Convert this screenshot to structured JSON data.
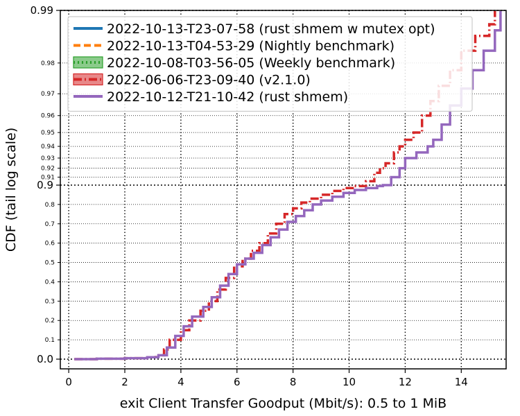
{
  "chart_data": {
    "type": "line",
    "xlabel": "exit Client Transfer Goodput (Mbit/s): 0.5 to 1 MiB",
    "ylabel": "CDF (tail log scale)",
    "xlim": [
      -0.3,
      15.6
    ],
    "xticks": [
      0,
      2,
      4,
      6,
      8,
      10,
      12,
      14
    ],
    "yscale": "tail log",
    "yticks_major": [
      0.0,
      0.9,
      0.99
    ],
    "yticks_minor": [
      0.1,
      0.2,
      0.3,
      0.4,
      0.5,
      0.6,
      0.7,
      0.8,
      0.91,
      0.92,
      0.93,
      0.94,
      0.95,
      0.96,
      0.97,
      0.98
    ],
    "ytick_labels": {
      "0.0": "0.0",
      "0.1": "0.1",
      "0.2": "0.2",
      "0.3": "0.3",
      "0.4": "0.4",
      "0.5": "0.5",
      "0.6": "0.6",
      "0.7": "0.7",
      "0.8": "0.8",
      "0.9": "0.9",
      "0.91": "0.91",
      "0.92": "0.92",
      "0.93": "0.93",
      "0.94": "0.94",
      "0.95": "0.95",
      "0.96": "0.96",
      "0.97": "0.97",
      "0.98": "0.98",
      "0.99": "0.99"
    },
    "grid": true,
    "legend_position": "top-left",
    "series": [
      {
        "name": "2022-10-13-T23-07-58 (rust shmem w mutex opt)",
        "color": "#1f77b4",
        "style": "solid",
        "x": [],
        "y": []
      },
      {
        "name": "2022-10-13-T04-53-29 (Nightly benchmark)",
        "color": "#ff7f0e",
        "style": "dashed",
        "x": [],
        "y": []
      },
      {
        "name": "2022-10-08-T03-56-05 (Weekly benchmark)",
        "color": "#2ca02c",
        "style": "dotted",
        "x": [],
        "y": []
      },
      {
        "name": "2022-06-06-T23-09-40 (v2.1.0)",
        "color": "#d62728",
        "style": "dashdot",
        "x": [
          0.2,
          1.0,
          2.0,
          2.8,
          3.1,
          3.4,
          3.6,
          4.0,
          4.3,
          4.7,
          5.0,
          5.3,
          5.6,
          5.9,
          6.2,
          6.5,
          6.8,
          7.1,
          7.4,
          7.7,
          8.0,
          8.3,
          8.6,
          9.0,
          9.4,
          9.8,
          10.2,
          10.6,
          10.9,
          11.1,
          11.3,
          11.6,
          11.8,
          12.0,
          12.3,
          12.6,
          12.9,
          13.2,
          13.6,
          14.0,
          14.5,
          15.0,
          15.2
        ],
        "y": [
          0.0,
          0.002,
          0.005,
          0.01,
          0.02,
          0.05,
          0.1,
          0.15,
          0.2,
          0.25,
          0.3,
          0.36,
          0.42,
          0.48,
          0.52,
          0.56,
          0.6,
          0.65,
          0.7,
          0.75,
          0.78,
          0.81,
          0.83,
          0.85,
          0.87,
          0.885,
          0.895,
          0.905,
          0.915,
          0.92,
          0.925,
          0.935,
          0.94,
          0.945,
          0.95,
          0.96,
          0.967,
          0.973,
          0.978,
          0.983,
          0.986,
          0.988,
          0.99
        ]
      },
      {
        "name": "2022-10-12-T21-10-42 (rust shmem)",
        "color": "#9467bd",
        "style": "solid",
        "x": [
          0.2,
          1.0,
          2.0,
          2.8,
          3.2,
          3.5,
          3.8,
          4.1,
          4.4,
          4.8,
          5.1,
          5.4,
          5.7,
          6.0,
          6.3,
          6.6,
          6.9,
          7.2,
          7.5,
          7.8,
          8.1,
          8.4,
          8.7,
          9.0,
          9.4,
          9.8,
          10.2,
          10.6,
          11.0,
          11.2,
          11.5,
          11.8,
          12.0,
          12.4,
          12.8,
          13.0,
          13.3,
          13.6,
          14.0,
          14.4,
          14.8,
          15.2,
          15.4
        ],
        "y": [
          0.0,
          0.002,
          0.005,
          0.01,
          0.02,
          0.06,
          0.12,
          0.17,
          0.22,
          0.27,
          0.32,
          0.38,
          0.44,
          0.49,
          0.52,
          0.55,
          0.59,
          0.63,
          0.67,
          0.71,
          0.74,
          0.77,
          0.8,
          0.82,
          0.84,
          0.86,
          0.875,
          0.885,
          0.895,
          0.9,
          0.91,
          0.92,
          0.93,
          0.935,
          0.94,
          0.945,
          0.955,
          0.965,
          0.972,
          0.978,
          0.983,
          0.987,
          0.99
        ]
      }
    ]
  }
}
